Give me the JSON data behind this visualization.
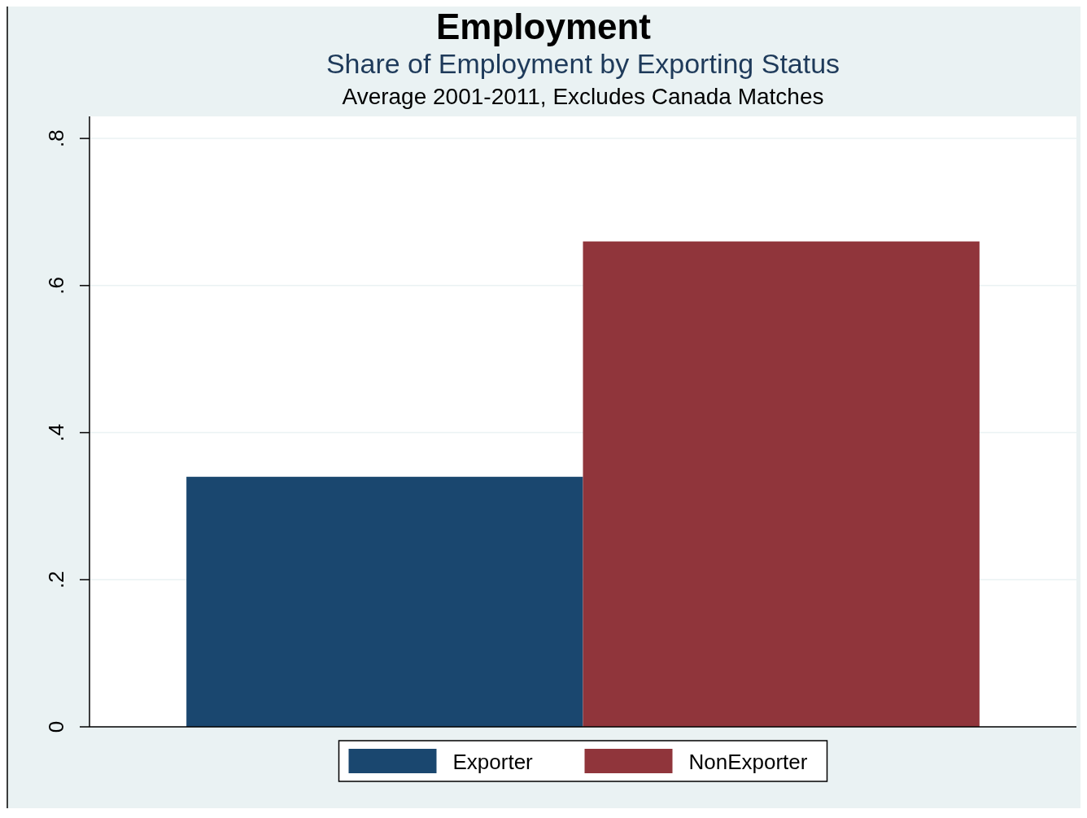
{
  "chart_data": {
    "type": "bar",
    "title": "Share of Employment by Exporting Status",
    "subtitle": "Average 2001-2011, Excludes Canada Matches",
    "annotations": [
      "Employment"
    ],
    "categories": [
      null
    ],
    "series": [
      {
        "name": "Exporter",
        "color": "#1a476f",
        "values": [
          0.34
        ]
      },
      {
        "name": "NonExporter",
        "color": "#90353b",
        "values": [
          0.66
        ]
      }
    ],
    "ylim": [
      0,
      0.83
    ],
    "yticks": [
      {
        "value": 0,
        "label": "0"
      },
      {
        "value": 0.2,
        "label": ".2"
      },
      {
        "value": 0.4,
        "label": ".4"
      },
      {
        "value": 0.6,
        "label": ".6"
      },
      {
        "value": 0.8,
        "label": ".8"
      }
    ],
    "grid": "y",
    "legend": "bottom"
  }
}
